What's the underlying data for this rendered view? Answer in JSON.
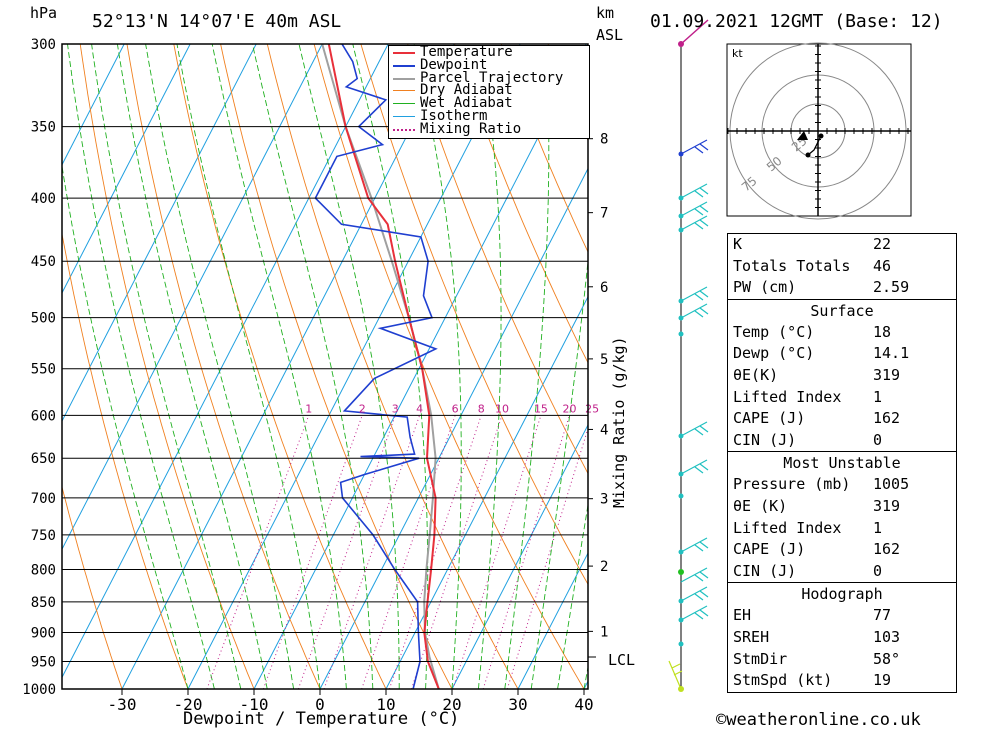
{
  "header": {
    "location": "52°13'N  14°07'E  40m  ASL",
    "date": "01.09.2021  12GMT  (Base: 12)",
    "pressure_unit": "hPa",
    "km_label": "km",
    "asl_label": "ASL"
  },
  "xlabel": "Dewpoint / Temperature (°C)",
  "mixing_label": "Mixing Ratio (g/kg)",
  "lcl_label": "LCL",
  "copyright": "©weatheronline.co.uk",
  "hodograph": {
    "unit": "kt",
    "ring_labels": [
      "25",
      "50",
      "75"
    ]
  },
  "colors": {
    "temperature": "#e8303a",
    "dewpoint": "#1f3fd0",
    "parcel": "#a0a0a0",
    "dry_adiabat": "#f08020",
    "wet_adiabat": "#20b020",
    "isotherm": "#20a0e0",
    "mixing_ratio": "#c0208a",
    "wind": "#20c0c0"
  },
  "legend": [
    {
      "label": "Temperature",
      "color": "#e8303a",
      "style": "solid"
    },
    {
      "label": "Dewpoint",
      "color": "#1f3fd0",
      "style": "solid"
    },
    {
      "label": "Parcel Trajectory",
      "color": "#a0a0a0",
      "style": "solid"
    },
    {
      "label": "Dry Adiabat",
      "color": "#f08020",
      "style": "solid"
    },
    {
      "label": "Wet Adiabat",
      "color": "#20b020",
      "style": "solid"
    },
    {
      "label": "Isotherm",
      "color": "#20a0e0",
      "style": "solid"
    },
    {
      "label": "Mixing Ratio",
      "color": "#c0208a",
      "style": "dotted"
    }
  ],
  "table": {
    "indices": [
      {
        "key": "K",
        "value": "22"
      },
      {
        "key": "Totals Totals",
        "value": "46"
      },
      {
        "key": "PW (cm)",
        "value": "2.59"
      }
    ],
    "surface_title": "Surface",
    "surface": [
      {
        "key": "Temp (°C)",
        "value": "18"
      },
      {
        "key": "Dewp (°C)",
        "value": "14.1"
      },
      {
        "key": "θE(K)",
        "value": "319"
      },
      {
        "key": "Lifted Index",
        "value": "1"
      },
      {
        "key": "CAPE (J)",
        "value": "162"
      },
      {
        "key": "CIN (J)",
        "value": "0"
      }
    ],
    "mu_title": "Most Unstable",
    "most_unstable": [
      {
        "key": "Pressure (mb)",
        "value": "1005"
      },
      {
        "key": "θE (K)",
        "value": "319"
      },
      {
        "key": "Lifted Index",
        "value": "1"
      },
      {
        "key": "CAPE (J)",
        "value": "162"
      },
      {
        "key": "CIN (J)",
        "value": "0"
      }
    ],
    "hodo_title": "Hodograph",
    "hodograph": [
      {
        "key": "EH",
        "value": "77"
      },
      {
        "key": "SREH",
        "value": "103"
      },
      {
        "key": "StmDir",
        "value": "58°"
      },
      {
        "key": "StmSpd (kt)",
        "value": "19"
      }
    ]
  },
  "chart_data": {
    "type": "line",
    "title": "52°13'N  14°07'E  40m  ASL",
    "xlabel": "Dewpoint / Temperature (°C)",
    "ylabel": "hPa",
    "xlim": [
      -40,
      40
    ],
    "ylim": [
      1000,
      300
    ],
    "y_scale": "log",
    "x_ticks": [
      "-30",
      "-20",
      "-10",
      "0",
      "10",
      "20",
      "30",
      "40"
    ],
    "pressure_levels": [
      "300",
      "350",
      "400",
      "450",
      "500",
      "550",
      "600",
      "650",
      "700",
      "750",
      "800",
      "850",
      "900",
      "950",
      "1000"
    ],
    "km_ticks": [
      {
        "label": "8",
        "p": 358
      },
      {
        "label": "7",
        "p": 411
      },
      {
        "label": "6",
        "p": 472
      },
      {
        "label": "5",
        "p": 540
      },
      {
        "label": "4",
        "p": 616
      },
      {
        "label": "3",
        "p": 701
      },
      {
        "label": "2",
        "p": 795
      },
      {
        "label": "1",
        "p": 898
      }
    ],
    "lcl_p": 942,
    "mixing_ratio_labels": [
      "1",
      "2",
      "3",
      "4",
      "6",
      "8",
      "10",
      "15",
      "20",
      "25"
    ],
    "grid": true,
    "legend_position": "top-right",
    "series": [
      {
        "name": "Temperature",
        "points": [
          [
            1000,
            18
          ],
          [
            950,
            14.2
          ],
          [
            900,
            11.4
          ],
          [
            850,
            9.5
          ],
          [
            800,
            7.5
          ],
          [
            750,
            5.3
          ],
          [
            700,
            2.6
          ],
          [
            650,
            -1.8
          ],
          [
            600,
            -4.8
          ],
          [
            550,
            -9.5
          ],
          [
            500,
            -15.5
          ],
          [
            450,
            -22
          ],
          [
            420,
            -26
          ],
          [
            400,
            -31
          ],
          [
            350,
            -40
          ],
          [
            300,
            -49
          ]
        ]
      },
      {
        "name": "Dewpoint",
        "points": [
          [
            1000,
            14.1
          ],
          [
            950,
            13
          ],
          [
            900,
            10.5
          ],
          [
            850,
            8
          ],
          [
            800,
            2
          ],
          [
            750,
            -4
          ],
          [
            700,
            -11.5
          ],
          [
            680,
            -13
          ],
          [
            670,
            -10
          ],
          [
            650,
            -3
          ],
          [
            648,
            -12
          ],
          [
            645,
            -4
          ],
          [
            625,
            -6
          ],
          [
            602,
            -8
          ],
          [
            595,
            -18
          ],
          [
            560,
            -16
          ],
          [
            530,
            -9
          ],
          [
            510,
            -19
          ],
          [
            500,
            -12
          ],
          [
            480,
            -15
          ],
          [
            450,
            -17
          ],
          [
            430,
            -20
          ],
          [
            420,
            -33
          ],
          [
            400,
            -39
          ],
          [
            370,
            -39
          ],
          [
            362,
            -33
          ],
          [
            350,
            -38
          ],
          [
            333,
            -36
          ],
          [
            325,
            -43
          ],
          [
            320,
            -42
          ],
          [
            310,
            -44
          ],
          [
            300,
            -47
          ]
        ]
      },
      {
        "name": "Parcel Trajectory",
        "points": [
          [
            1000,
            18
          ],
          [
            942,
            14.1
          ],
          [
            900,
            11.5
          ],
          [
            850,
            9
          ],
          [
            800,
            6.8
          ],
          [
            750,
            4.6
          ],
          [
            700,
            2.2
          ],
          [
            650,
            -0.5
          ],
          [
            600,
            -4.5
          ],
          [
            550,
            -9.5
          ],
          [
            500,
            -15.5
          ],
          [
            450,
            -22.5
          ],
          [
            400,
            -30.5
          ],
          [
            350,
            -40
          ],
          [
            300,
            -50
          ]
        ]
      }
    ]
  }
}
